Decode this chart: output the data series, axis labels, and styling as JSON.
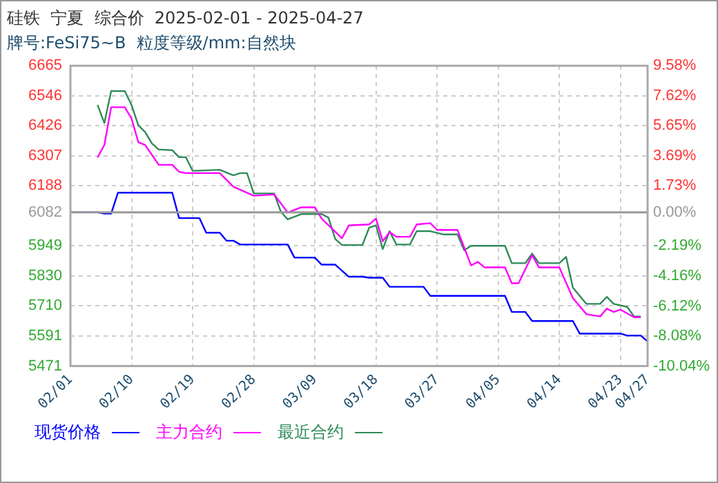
{
  "chart_data": {
    "type": "line",
    "title": "硅铁  宁夏  综合价  2025-02-01 - 2025-04-27",
    "subtitle": "牌号:FeSi75~B  粒度等级/mm:自然块",
    "xlim": [
      "2025-02-01",
      "2025-04-27"
    ],
    "xticks": [
      {
        "value": "2025-02-01",
        "label": "02/01"
      },
      {
        "value": "2025-02-10",
        "label": "02/10"
      },
      {
        "value": "2025-02-19",
        "label": "02/19"
      },
      {
        "value": "2025-02-28",
        "label": "02/28"
      },
      {
        "value": "2025-03-09",
        "label": "03/09"
      },
      {
        "value": "2025-03-18",
        "label": "03/18"
      },
      {
        "value": "2025-03-27",
        "label": "03/27"
      },
      {
        "value": "2025-04-05",
        "label": "04/05"
      },
      {
        "value": "2025-04-14",
        "label": "04/14"
      },
      {
        "value": "2025-04-23",
        "label": "04/23"
      },
      {
        "value": "2025-04-27",
        "label": "04/27"
      }
    ],
    "ylim": [
      5471,
      6665
    ],
    "yticks": [
      5471,
      5591,
      5710,
      5830,
      5949,
      6082,
      6188,
      6307,
      6426,
      6546,
      6665
    ],
    "y2lim": [
      -10.04,
      9.58
    ],
    "y2ticks": [
      {
        "value": -10.04,
        "label": "-10.04%"
      },
      {
        "value": -8.08,
        "label": "-8.08%"
      },
      {
        "value": -6.12,
        "label": "-6.12%"
      },
      {
        "value": -4.16,
        "label": "-4.16%"
      },
      {
        "value": -2.19,
        "label": "-2.19%"
      },
      {
        "value": 0,
        "label": "0.00%"
      },
      {
        "value": 1.73,
        "label": "1.73%"
      },
      {
        "value": 3.69,
        "label": "3.69%"
      },
      {
        "value": 5.65,
        "label": "5.65%"
      },
      {
        "value": 7.62,
        "label": "7.62%"
      },
      {
        "value": 9.58,
        "label": "9.58%"
      }
    ],
    "ref_lines": [
      {
        "axis": "y",
        "value": 6082,
        "color": "#999999"
      }
    ],
    "grid": true,
    "legend": "bottom",
    "marker": "none",
    "line_style": "solid",
    "series": [
      {
        "name": "现货价格",
        "color": "#0000ff",
        "x": [
          "2025-02-01",
          "2025-02-05",
          "2025-02-06",
          "2025-02-07",
          "2025-02-08",
          "2025-02-16",
          "2025-02-17",
          "2025-02-20",
          "2025-02-21",
          "2025-02-23",
          "2025-02-24",
          "2025-02-25",
          "2025-02-26",
          "2025-03-05",
          "2025-03-06",
          "2025-03-09",
          "2025-03-10",
          "2025-03-12",
          "2025-03-14",
          "2025-03-16",
          "2025-03-17",
          "2025-03-19",
          "2025-03-20",
          "2025-03-25",
          "2025-03-26",
          "2025-04-06",
          "2025-04-07",
          "2025-04-09",
          "2025-04-10",
          "2025-04-16",
          "2025-04-17",
          "2025-04-23",
          "2025-04-24",
          "2025-04-26",
          "2025-04-27"
        ],
        "values": [
          6082,
          6082,
          6077,
          6077,
          6160,
          6160,
          6059,
          6059,
          6001,
          6001,
          5969,
          5969,
          5954,
          5954,
          5902,
          5902,
          5874,
          5874,
          5826,
          5826,
          5822,
          5822,
          5786,
          5786,
          5750,
          5750,
          5686,
          5686,
          5650,
          5650,
          5600,
          5600,
          5592,
          5592,
          5569
        ]
      },
      {
        "name": "主力合约",
        "color": "#ff00ff",
        "x": [
          "2025-02-05",
          "2025-02-06",
          "2025-02-07",
          "2025-02-09",
          "2025-02-10",
          "2025-02-11",
          "2025-02-12",
          "2025-02-14",
          "2025-02-16",
          "2025-02-17",
          "2025-02-18",
          "2025-02-23",
          "2025-02-25",
          "2025-02-28",
          "2025-03-03",
          "2025-03-05",
          "2025-03-07",
          "2025-03-09",
          "2025-03-10",
          "2025-03-13",
          "2025-03-14",
          "2025-03-17",
          "2025-03-18",
          "2025-03-19",
          "2025-03-20",
          "2025-03-21",
          "2025-03-23",
          "2025-03-24",
          "2025-03-26",
          "2025-03-27",
          "2025-03-30",
          "2025-04-01",
          "2025-04-02",
          "2025-04-03",
          "2025-04-06",
          "2025-04-07",
          "2025-04-08",
          "2025-04-10",
          "2025-04-11",
          "2025-04-14",
          "2025-04-16",
          "2025-04-18",
          "2025-04-20",
          "2025-04-21",
          "2025-04-22",
          "2025-04-23",
          "2025-04-25",
          "2025-04-26"
        ],
        "values": [
          6300,
          6350,
          6500,
          6500,
          6455,
          6361,
          6350,
          6271,
          6271,
          6243,
          6238,
          6238,
          6184,
          6148,
          6153,
          6081,
          6102,
          6102,
          6057,
          5979,
          6030,
          6034,
          6057,
          5967,
          6003,
          5985,
          5985,
          6034,
          6039,
          6012,
          6012,
          5871,
          5885,
          5863,
          5863,
          5800,
          5800,
          5912,
          5863,
          5863,
          5741,
          5677,
          5668,
          5699,
          5686,
          5695,
          5665,
          5665
        ]
      },
      {
        "name": "最近合约",
        "color": "#2e8b57",
        "x": [
          "2025-02-05",
          "2025-02-06",
          "2025-02-07",
          "2025-02-09",
          "2025-02-10",
          "2025-02-11",
          "2025-02-12",
          "2025-02-13",
          "2025-02-14",
          "2025-02-16",
          "2025-02-17",
          "2025-02-18",
          "2025-02-19",
          "2025-02-23",
          "2025-02-25",
          "2025-02-26",
          "2025-02-27",
          "2025-02-28",
          "2025-03-03",
          "2025-03-04",
          "2025-03-05",
          "2025-03-07",
          "2025-03-10",
          "2025-03-11",
          "2025-03-12",
          "2025-03-13",
          "2025-03-16",
          "2025-03-17",
          "2025-03-18",
          "2025-03-19",
          "2025-03-20",
          "2025-03-21",
          "2025-03-23",
          "2025-03-24",
          "2025-03-26",
          "2025-03-28",
          "2025-03-30",
          "2025-03-31",
          "2025-04-01",
          "2025-04-06",
          "2025-04-07",
          "2025-04-09",
          "2025-04-10",
          "2025-04-11",
          "2025-04-14",
          "2025-04-15",
          "2025-04-16",
          "2025-04-18",
          "2025-04-20",
          "2025-04-21",
          "2025-04-22",
          "2025-04-24",
          "2025-04-25",
          "2025-04-26"
        ],
        "values": [
          6509,
          6437,
          6564,
          6564,
          6509,
          6428,
          6401,
          6356,
          6332,
          6329,
          6301,
          6301,
          6247,
          6251,
          6229,
          6238,
          6238,
          6157,
          6157,
          6084,
          6054,
          6075,
          6075,
          6061,
          5976,
          5952,
          5952,
          6021,
          6030,
          5936,
          6007,
          5954,
          5954,
          6007,
          6007,
          5994,
          5994,
          5931,
          5949,
          5949,
          5880,
          5880,
          5918,
          5880,
          5880,
          5905,
          5782,
          5718,
          5718,
          5746,
          5718,
          5706,
          5668,
          5668
        ]
      }
    ]
  }
}
